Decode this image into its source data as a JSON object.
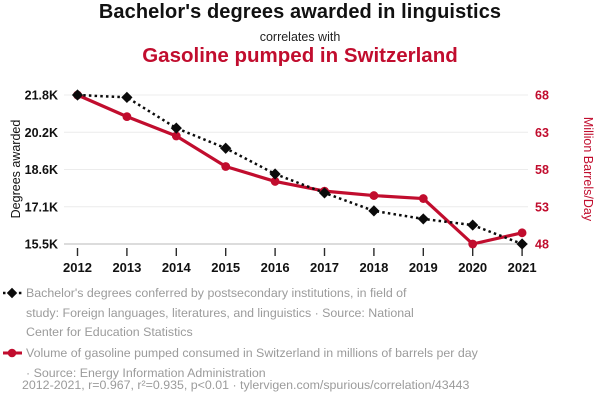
{
  "header": {
    "title": "Bachelor's degrees awarded in linguistics",
    "connector": "correlates with",
    "subtitle": "Gasoline pumped in Switzerland"
  },
  "chart_data": {
    "type": "line",
    "x": [
      "2012",
      "2013",
      "2014",
      "2015",
      "2016",
      "2017",
      "2018",
      "2019",
      "2020",
      "2021"
    ],
    "series": [
      {
        "name": "Bachelor's degrees conferred by postsecondary institutions, in field of study: Foreign languages, literatures, and linguistics",
        "axis": "left",
        "color": "#0b0b0b",
        "line_style": "dotted",
        "marker": "diamond",
        "values": [
          21800,
          21700,
          20400,
          19550,
          18460,
          17660,
          16900,
          16560,
          16300,
          15500
        ]
      },
      {
        "name": "Volume of gasoline pumped consumed in Switzerland (million barrels/day)",
        "axis": "right",
        "color": "#c10d2e",
        "line_style": "solid",
        "marker": "circle",
        "values": [
          68.0,
          65.1,
          62.5,
          58.4,
          56.4,
          55.1,
          54.5,
          54.1,
          48.0,
          49.5
        ]
      }
    ],
    "left_axis": {
      "label": "Degrees awarded",
      "ticks": [
        "21.8K",
        "20.2K",
        "18.6K",
        "17.1K",
        "15.5K"
      ],
      "range": [
        21800,
        15500
      ]
    },
    "right_axis": {
      "label": "Million Barrels/Day",
      "ticks": [
        "68",
        "63",
        "58",
        "53",
        "48"
      ],
      "range": [
        68,
        48
      ]
    },
    "grid": true,
    "legend_position": "bottom"
  },
  "legend": [
    {
      "marker": "black-dotted-diamond",
      "text": "Bachelor's degrees conferred by postsecondary institutions, in field of\nstudy: Foreign languages, literatures, and linguistics · Source: National\nCenter for Education Statistics"
    },
    {
      "marker": "red-line-circle",
      "text": "Volume of gasoline pumped consumed in Switzerland in millions of barrels per day\n· Source: Energy Information Administration"
    }
  ],
  "footer": {
    "stats": "2012-2021, r=0.967, r²=0.935, p<0.01 · tylervigen.com/spurious/correlation/43443"
  },
  "colors": {
    "accent_red": "#c10d2e",
    "series_black": "#0b0b0b",
    "muted_text": "#9b9b9b",
    "grid": "#ececec",
    "baseline_grid": "#b8b8b8",
    "tick": "#2a2a2a"
  }
}
